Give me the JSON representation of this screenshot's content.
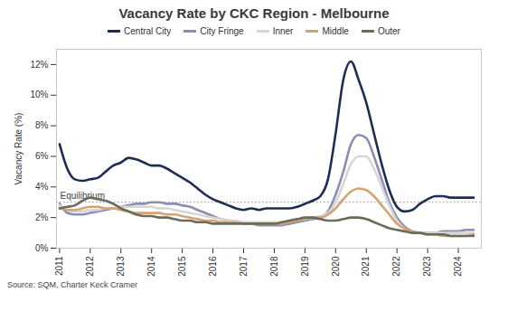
{
  "chart_data": {
    "type": "line",
    "title": "Vacancy Rate by CKC Region - Melbourne",
    "y_label": "Vacancy Rate (%)",
    "source": "Source: SQM, Charter Keck Cramer",
    "annotations": [
      {
        "text": "Equilibrium",
        "y": 3,
        "line_style": "dotted"
      }
    ],
    "x": [
      2011,
      2011.25,
      2011.5,
      2011.75,
      2012,
      2012.25,
      2012.5,
      2012.75,
      2013,
      2013.25,
      2013.5,
      2013.75,
      2014,
      2014.25,
      2014.5,
      2014.75,
      2015,
      2015.25,
      2015.5,
      2015.75,
      2016,
      2016.25,
      2016.5,
      2016.75,
      2017,
      2017.25,
      2017.5,
      2017.75,
      2018,
      2018.25,
      2018.5,
      2018.75,
      2019,
      2019.25,
      2019.5,
      2019.75,
      2020,
      2020.25,
      2020.5,
      2020.75,
      2021,
      2021.25,
      2021.5,
      2021.75,
      2022,
      2022.25,
      2022.5,
      2022.75,
      2023,
      2023.25,
      2023.5,
      2023.75,
      2024,
      2024.25,
      2024.5
    ],
    "xlim": [
      2010.9,
      2024.75
    ],
    "xticks": [
      2011,
      2012,
      2013,
      2014,
      2015,
      2016,
      2017,
      2018,
      2019,
      2020,
      2021,
      2022,
      2023,
      2024
    ],
    "ylim": [
      0,
      13
    ],
    "yticks": [
      {
        "value": 0,
        "label": "0%"
      },
      {
        "value": 2,
        "label": "2%"
      },
      {
        "value": 4,
        "label": "4%"
      },
      {
        "value": 6,
        "label": "6%"
      },
      {
        "value": 8,
        "label": "8%"
      },
      {
        "value": 10,
        "label": "10%"
      },
      {
        "value": 12,
        "label": "12%"
      }
    ],
    "grid": false,
    "legend": "top",
    "series": [
      {
        "name": "Central City",
        "color": "#1f2d55",
        "values": [
          6.8,
          5.2,
          4.5,
          4.4,
          4.5,
          4.6,
          5.0,
          5.4,
          5.6,
          5.9,
          5.8,
          5.6,
          5.4,
          5.4,
          5.2,
          4.9,
          4.6,
          4.3,
          3.9,
          3.5,
          3.2,
          3.0,
          2.8,
          2.6,
          2.5,
          2.6,
          2.5,
          2.6,
          2.6,
          2.6,
          2.6,
          2.7,
          2.9,
          3.1,
          3.4,
          4.5,
          7.5,
          11.0,
          12.2,
          11.0,
          9.5,
          7.5,
          5.5,
          3.8,
          2.7,
          2.4,
          2.5,
          2.9,
          3.2,
          3.4,
          3.4,
          3.3,
          3.3,
          3.3,
          3.3
        ]
      },
      {
        "name": "City Fringe",
        "color": "#8a8db5",
        "values": [
          2.9,
          2.3,
          2.2,
          2.2,
          2.3,
          2.4,
          2.5,
          2.6,
          2.7,
          2.8,
          2.9,
          2.9,
          3.0,
          3.0,
          2.9,
          2.9,
          2.8,
          2.7,
          2.5,
          2.3,
          2.1,
          1.9,
          1.8,
          1.7,
          1.6,
          1.6,
          1.5,
          1.5,
          1.5,
          1.5,
          1.6,
          1.7,
          1.8,
          1.9,
          2.0,
          2.4,
          3.5,
          5.0,
          6.8,
          7.4,
          7.2,
          6.0,
          4.5,
          3.0,
          2.0,
          1.4,
          1.1,
          1.0,
          1.0,
          1.0,
          1.1,
          1.1,
          1.1,
          1.2,
          1.2
        ]
      },
      {
        "name": "Inner",
        "color": "#d6d6d6",
        "values": [
          2.8,
          2.5,
          2.4,
          2.4,
          2.5,
          2.5,
          2.6,
          2.6,
          2.7,
          2.7,
          2.7,
          2.7,
          2.7,
          2.6,
          2.6,
          2.5,
          2.4,
          2.3,
          2.2,
          2.1,
          2.0,
          1.9,
          1.8,
          1.8,
          1.7,
          1.7,
          1.7,
          1.7,
          1.7,
          1.7,
          1.8,
          1.9,
          1.9,
          2.0,
          2.1,
          2.3,
          3.0,
          4.2,
          5.5,
          6.0,
          6.0,
          5.2,
          4.0,
          2.8,
          1.8,
          1.3,
          1.1,
          1.0,
          1.0,
          1.0,
          1.0,
          1.0,
          1.0,
          1.0,
          1.0
        ]
      },
      {
        "name": "Middle",
        "color": "#d4a373",
        "values": [
          2.6,
          2.5,
          2.5,
          2.6,
          2.7,
          2.7,
          2.6,
          2.6,
          2.5,
          2.4,
          2.3,
          2.3,
          2.3,
          2.3,
          2.2,
          2.2,
          2.1,
          2.0,
          1.9,
          1.8,
          1.8,
          1.7,
          1.7,
          1.7,
          1.6,
          1.6,
          1.6,
          1.6,
          1.6,
          1.6,
          1.7,
          1.8,
          1.9,
          2.0,
          2.0,
          2.2,
          2.6,
          3.2,
          3.7,
          3.9,
          3.8,
          3.4,
          2.8,
          2.2,
          1.6,
          1.3,
          1.1,
          1.0,
          0.9,
          0.9,
          0.8,
          0.8,
          0.8,
          0.8,
          0.9
        ]
      },
      {
        "name": "Outer",
        "color": "#6b6b5b",
        "values": [
          2.6,
          2.7,
          2.8,
          3.1,
          3.3,
          3.2,
          3.1,
          2.9,
          2.6,
          2.4,
          2.2,
          2.1,
          2.1,
          2.0,
          2.0,
          1.9,
          1.8,
          1.8,
          1.7,
          1.7,
          1.6,
          1.6,
          1.6,
          1.6,
          1.6,
          1.6,
          1.6,
          1.6,
          1.6,
          1.7,
          1.8,
          1.9,
          2.0,
          2.0,
          1.9,
          1.8,
          1.8,
          1.9,
          2.0,
          2.0,
          1.9,
          1.7,
          1.5,
          1.3,
          1.2,
          1.1,
          1.0,
          1.0,
          0.9,
          0.9,
          0.9,
          0.8,
          0.8,
          0.8,
          0.8
        ]
      }
    ]
  }
}
